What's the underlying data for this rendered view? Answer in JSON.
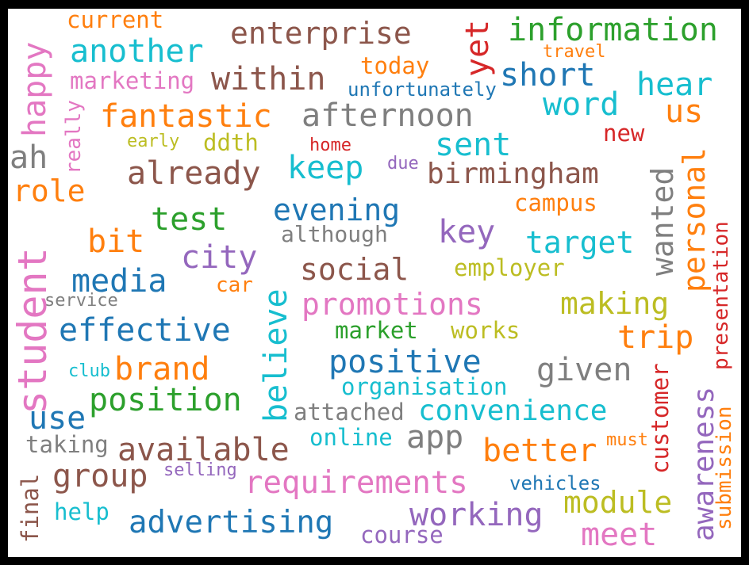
{
  "palette": {
    "blue": "#1f77b4",
    "orange": "#ff7f0e",
    "green": "#2ca02c",
    "red": "#d62728",
    "purple": "#9467bd",
    "brown": "#8c564b",
    "pink": "#e377c2",
    "gray": "#7f7f7f",
    "olive": "#bcbd22",
    "cyan": "#17becf"
  },
  "words": [
    {
      "text": "student",
      "color": "pink"
    },
    {
      "text": "advertising",
      "color": "blue"
    },
    {
      "text": "requirements",
      "color": "pink"
    },
    {
      "text": "information",
      "color": "green"
    },
    {
      "text": "enterprise",
      "color": "brown"
    },
    {
      "text": "available",
      "color": "brown"
    },
    {
      "text": "birmingham",
      "color": "brown"
    },
    {
      "text": "convenience",
      "color": "cyan"
    },
    {
      "text": "promotions",
      "color": "pink"
    },
    {
      "text": "position",
      "color": "green"
    },
    {
      "text": "effective",
      "color": "blue"
    },
    {
      "text": "afternoon",
      "color": "gray"
    },
    {
      "text": "fantastic",
      "color": "orange"
    },
    {
      "text": "another",
      "color": "cyan"
    },
    {
      "text": "within",
      "color": "brown"
    },
    {
      "text": "already",
      "color": "brown"
    },
    {
      "text": "positive",
      "color": "blue"
    },
    {
      "text": "working",
      "color": "purple"
    },
    {
      "text": "happy",
      "color": "pink"
    },
    {
      "text": "awareness",
      "color": "purple"
    },
    {
      "text": "evening",
      "color": "blue"
    },
    {
      "text": "social",
      "color": "brown"
    },
    {
      "text": "target",
      "color": "cyan"
    },
    {
      "text": "making",
      "color": "olive"
    },
    {
      "text": "module",
      "color": "olive"
    },
    {
      "text": "better",
      "color": "orange"
    },
    {
      "text": "given",
      "color": "gray"
    },
    {
      "text": "group",
      "color": "brown"
    },
    {
      "text": "media",
      "color": "blue"
    },
    {
      "text": "brand",
      "color": "orange"
    },
    {
      "text": "short",
      "color": "blue"
    },
    {
      "text": "personal",
      "color": "orange"
    },
    {
      "text": "believe",
      "color": "cyan"
    },
    {
      "text": "wanted",
      "color": "gray"
    },
    {
      "text": "word",
      "color": "cyan"
    },
    {
      "text": "hear",
      "color": "cyan"
    },
    {
      "text": "meet",
      "color": "pink"
    },
    {
      "text": "city",
      "color": "purple"
    },
    {
      "text": "test",
      "color": "green"
    },
    {
      "text": "sent",
      "color": "cyan"
    },
    {
      "text": "keep",
      "color": "cyan"
    },
    {
      "text": "trip",
      "color": "orange"
    },
    {
      "text": "key",
      "color": "purple"
    },
    {
      "text": "app",
      "color": "gray"
    },
    {
      "text": "use",
      "color": "blue"
    },
    {
      "text": "bit",
      "color": "orange"
    },
    {
      "text": "role",
      "color": "orange"
    },
    {
      "text": "yet",
      "color": "red"
    },
    {
      "text": "us",
      "color": "orange"
    },
    {
      "text": "ah",
      "color": "gray"
    },
    {
      "text": "customer",
      "color": "red"
    },
    {
      "text": "presentation",
      "color": "red"
    },
    {
      "text": "submission",
      "color": "orange"
    },
    {
      "text": "organisation",
      "color": "cyan"
    },
    {
      "text": "attached",
      "color": "gray"
    },
    {
      "text": "employer",
      "color": "olive"
    },
    {
      "text": "although",
      "color": "gray"
    },
    {
      "text": "marketing",
      "color": "pink"
    },
    {
      "text": "current",
      "color": "orange"
    },
    {
      "text": "today",
      "color": "orange"
    },
    {
      "text": "unfortunately",
      "color": "blue"
    },
    {
      "text": "campus",
      "color": "orange"
    },
    {
      "text": "online",
      "color": "cyan"
    },
    {
      "text": "market",
      "color": "green"
    },
    {
      "text": "works",
      "color": "olive"
    },
    {
      "text": "taking",
      "color": "gray"
    },
    {
      "text": "course",
      "color": "purple"
    },
    {
      "text": "help",
      "color": "cyan"
    },
    {
      "text": "final",
      "color": "brown"
    },
    {
      "text": "really",
      "color": "pink"
    },
    {
      "text": "ddth",
      "color": "olive"
    },
    {
      "text": "new",
      "color": "red"
    },
    {
      "text": "travel",
      "color": "orange"
    },
    {
      "text": "early",
      "color": "olive"
    },
    {
      "text": "home",
      "color": "red"
    },
    {
      "text": "due",
      "color": "purple"
    },
    {
      "text": "car",
      "color": "orange"
    },
    {
      "text": "service",
      "color": "gray"
    },
    {
      "text": "club",
      "color": "cyan"
    },
    {
      "text": "must",
      "color": "orange"
    },
    {
      "text": "selling",
      "color": "purple"
    },
    {
      "text": "vehicles",
      "color": "blue"
    }
  ]
}
